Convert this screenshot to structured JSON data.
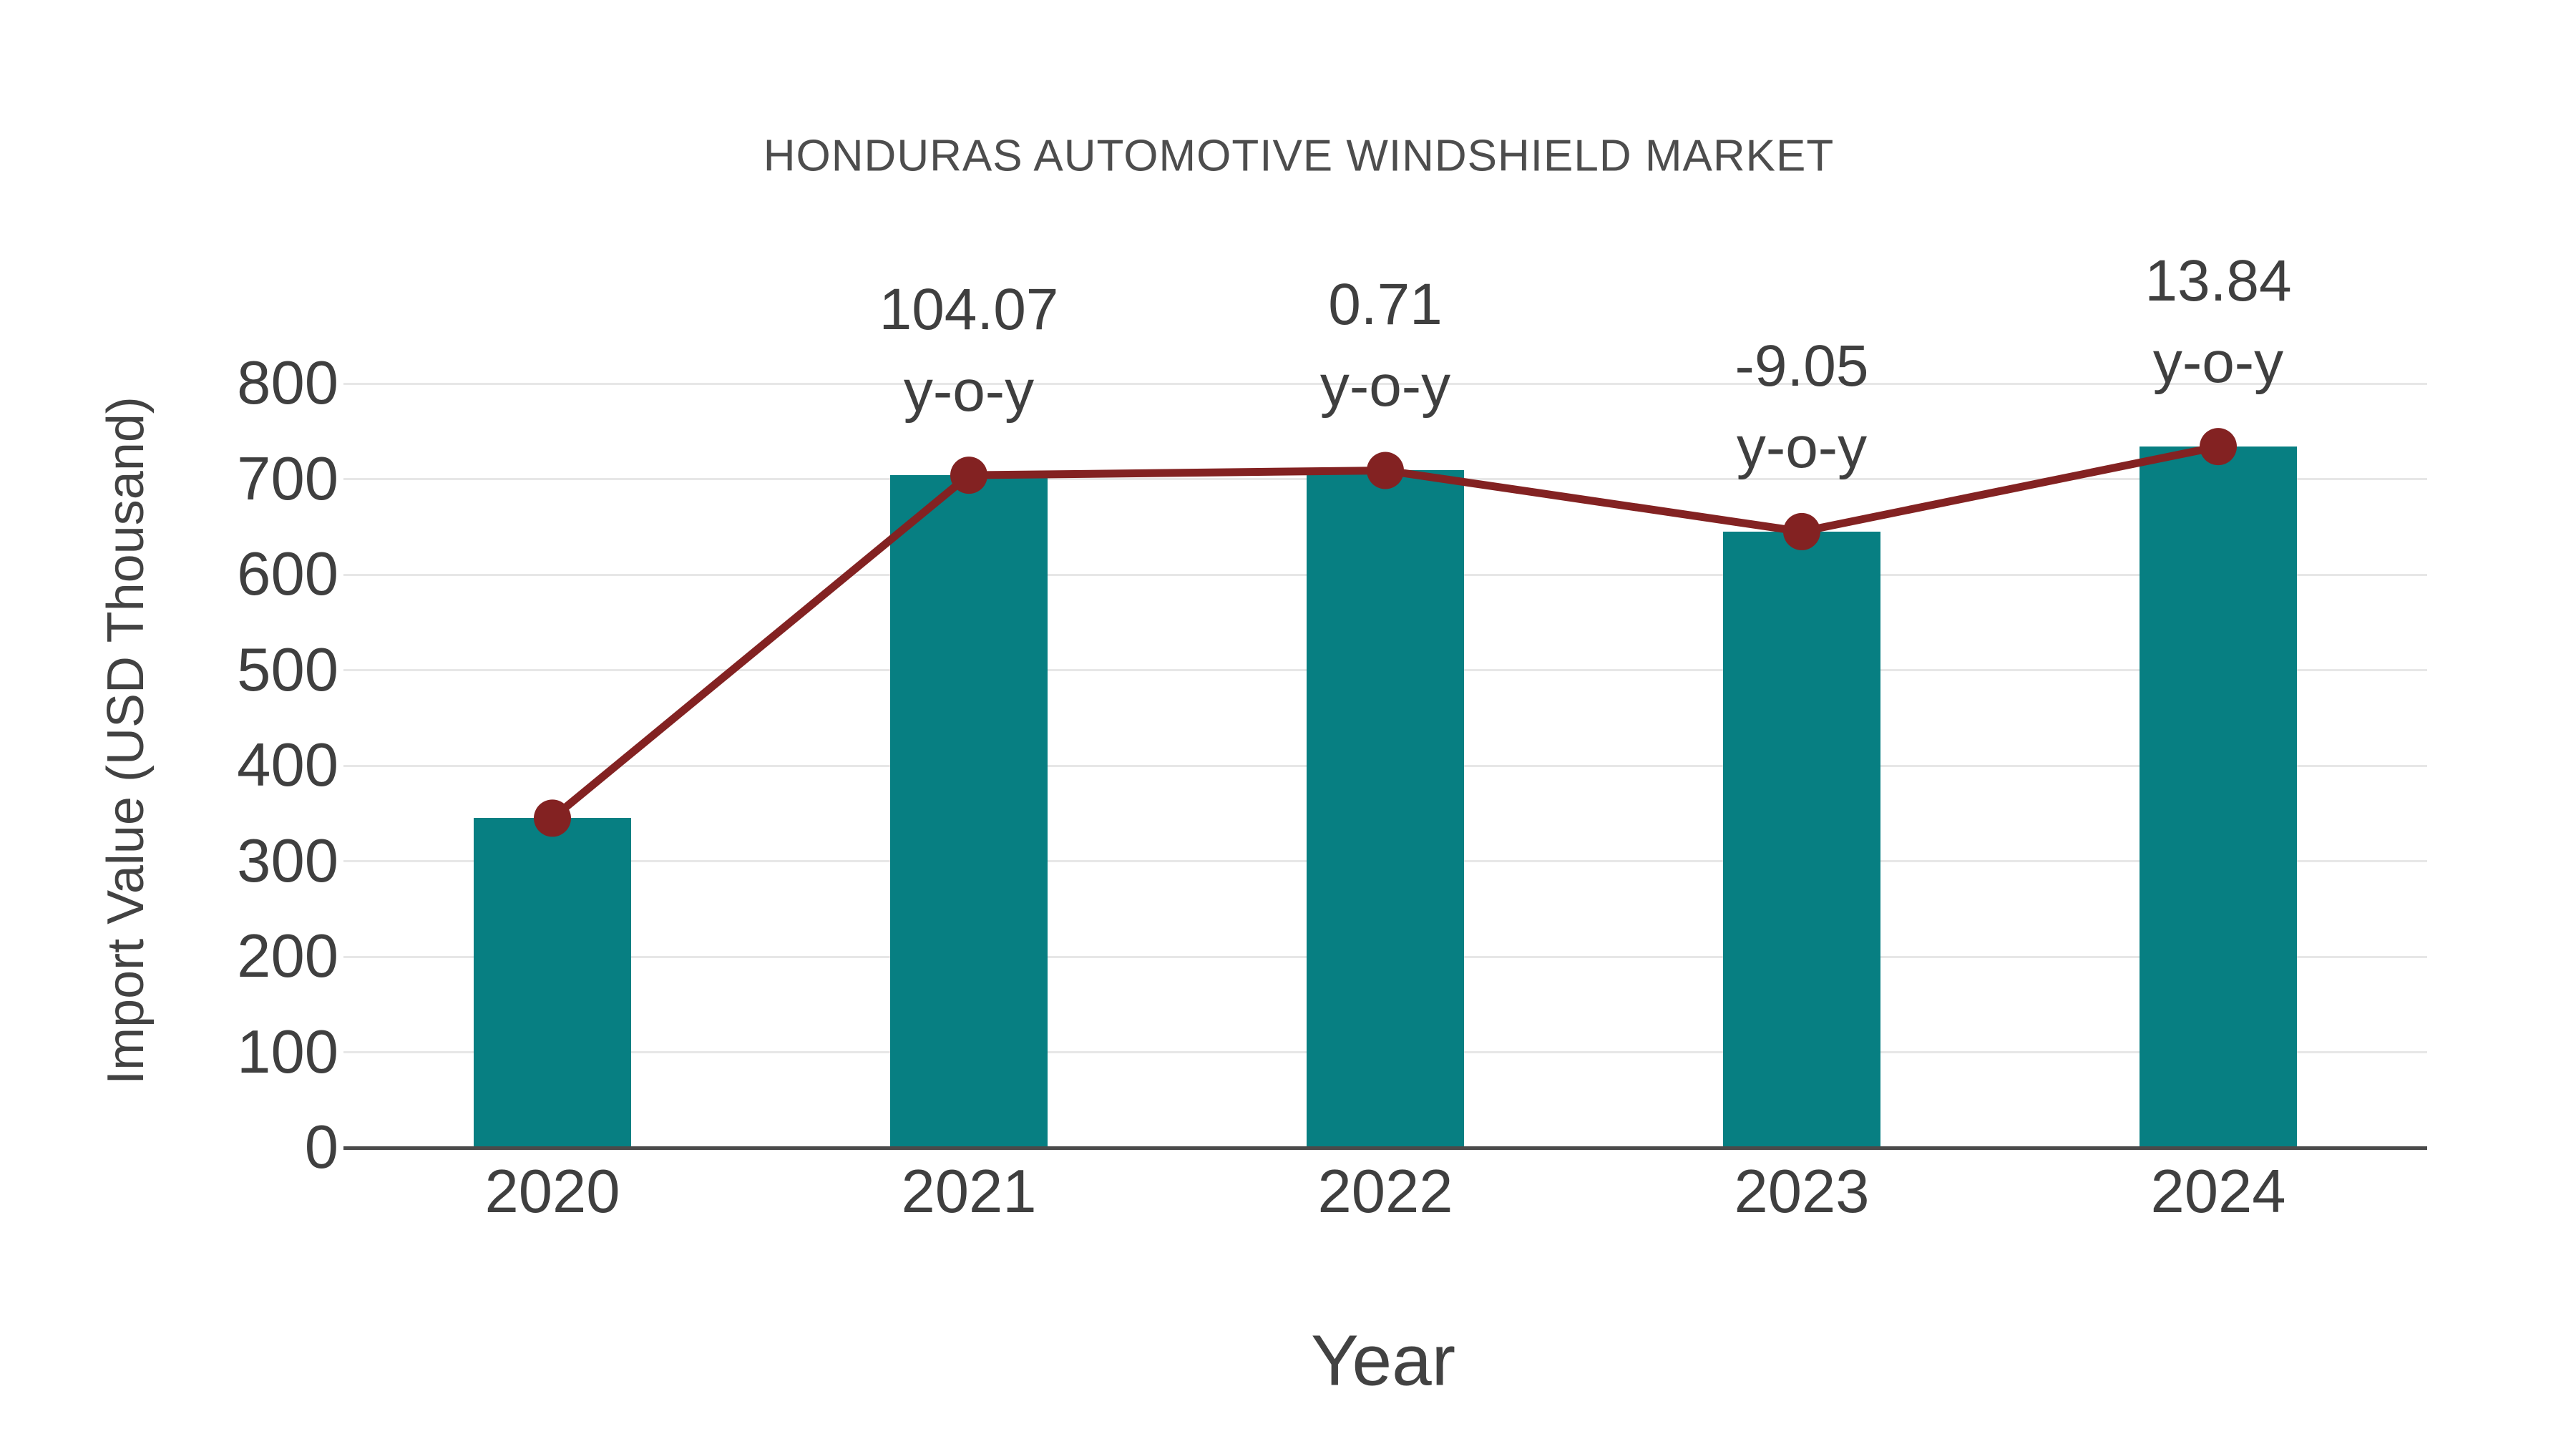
{
  "title": "HONDURAS AUTOMOTIVE WINDSHIELD MARKET",
  "axes": {
    "xlabel": "Year",
    "ylabel": "Import Value (USD Thousand)"
  },
  "chart_data": {
    "type": "bar",
    "title": "HONDURAS AUTOMOTIVE WINDSHIELD MARKET",
    "categories": [
      "2020",
      "2021",
      "2022",
      "2023",
      "2024"
    ],
    "series": [
      {
        "name": "Import Value (USD Thousand)",
        "type": "bar",
        "values": [
          345,
          704,
          709,
          645,
          734
        ]
      },
      {
        "name": "y-o-y trend",
        "type": "line",
        "values": [
          345,
          704,
          709,
          645,
          734
        ]
      }
    ],
    "annotations": [
      {
        "category": "2021",
        "value_line": "104.07",
        "suffix_line": "y-o-y"
      },
      {
        "category": "2022",
        "value_line": "0.71",
        "suffix_line": "y-o-y"
      },
      {
        "category": "2023",
        "value_line": "-9.05",
        "suffix_line": "y-o-y"
      },
      {
        "category": "2024",
        "value_line": "13.84",
        "suffix_line": "y-o-y"
      }
    ],
    "xlabel": "Year",
    "ylabel": "Import Value (USD Thousand)",
    "ylim": [
      0,
      800
    ],
    "yticks": [
      0,
      100,
      200,
      300,
      400,
      500,
      600,
      700,
      800
    ],
    "ytick_labels": [
      "0",
      "100",
      "200",
      "300",
      "400",
      "500",
      "600",
      "700",
      "800"
    ],
    "grid": true,
    "legend_position": "none",
    "colors": {
      "bar": "#077f82",
      "line": "#832222",
      "marker": "#832222",
      "grid": "#e7e7e7",
      "axis_line": "#4a4a4a",
      "tick_text": "#3f3f3f",
      "title_text": "#4d4d4d"
    }
  }
}
